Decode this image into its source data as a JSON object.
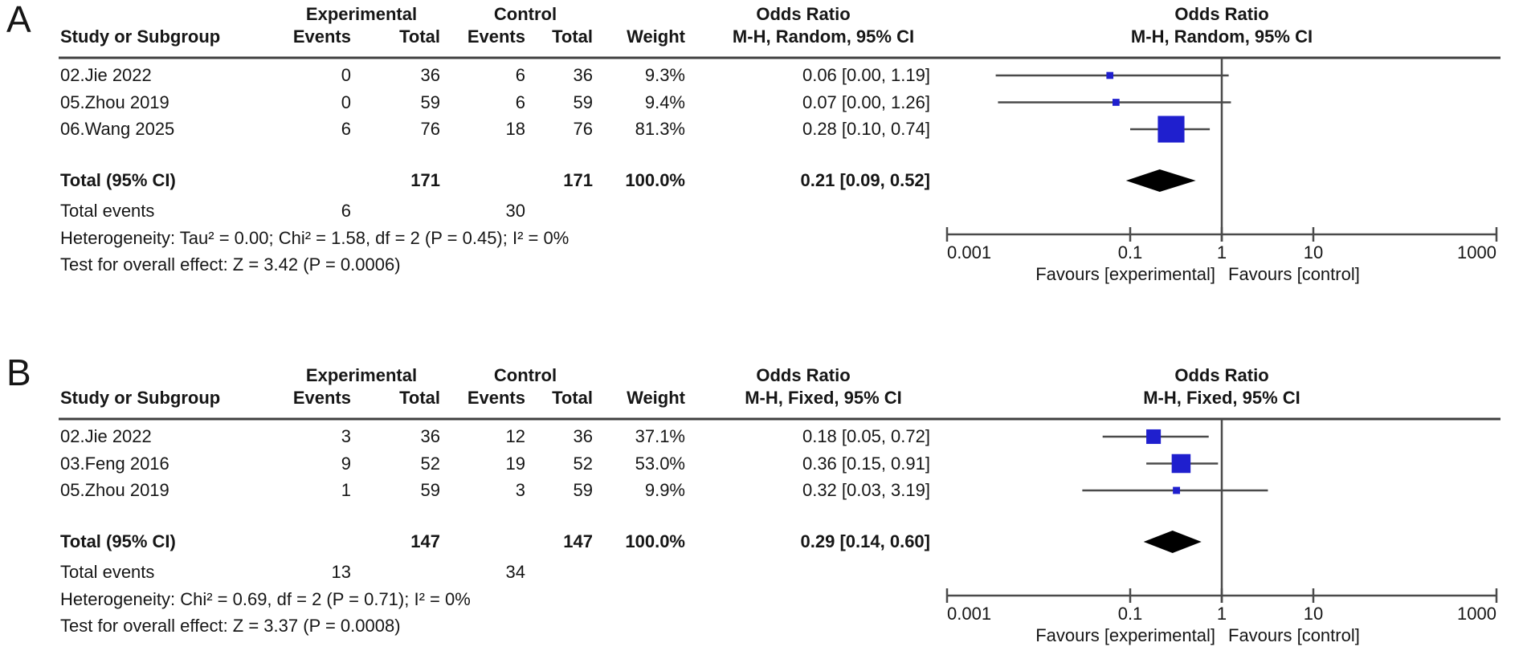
{
  "style": {
    "marker_color": "#1f1fce",
    "diamond_color": "#000000",
    "line_color": "#4a4a4a",
    "rule_color": "#3f3f3f",
    "text_color": "#161616",
    "background": "#ffffff"
  },
  "chart_data": [
    {
      "type": "forest",
      "panel_label": "A",
      "effect_label": "Odds Ratio",
      "method_label": "M-H, Random, 95% CI",
      "group_headers": {
        "experimental": "Experimental",
        "control": "Control"
      },
      "columns": {
        "study": "Study or Subgroup",
        "events": "Events",
        "total": "Total",
        "weight": "Weight"
      },
      "studies": [
        {
          "name": "02.Jie 2022",
          "exp_events": "0",
          "exp_total": "36",
          "ctl_events": "6",
          "ctl_total": "36",
          "weight": "9.3%",
          "or_text": "0.06 [0.00, 1.19]",
          "or": 0.06,
          "ci_lo_plot": 0.0034,
          "ci_hi_plot": 1.19
        },
        {
          "name": "05.Zhou 2019",
          "exp_events": "0",
          "exp_total": "59",
          "ctl_events": "6",
          "ctl_total": "59",
          "weight": "9.4%",
          "or_text": "0.07 [0.00, 1.26]",
          "or": 0.07,
          "ci_lo_plot": 0.0036,
          "ci_hi_plot": 1.26
        },
        {
          "name": "06.Wang 2025",
          "exp_events": "6",
          "exp_total": "76",
          "ctl_events": "18",
          "ctl_total": "76",
          "weight": "81.3%",
          "or_text": "0.28 [0.10, 0.74]",
          "or": 0.28,
          "ci_lo_plot": 0.1,
          "ci_hi_plot": 0.74
        }
      ],
      "total": {
        "label": "Total (95% CI)",
        "exp_total": "171",
        "ctl_total": "171",
        "weight": "100.0%",
        "or_text": "0.21 [0.09, 0.52]",
        "or": 0.21,
        "ci_lo": 0.09,
        "ci_hi": 0.52
      },
      "total_events": {
        "label": "Total events",
        "experimental": "6",
        "control": "30"
      },
      "heterogeneity": "Heterogeneity: Tau² = 0.00; Chi² = 1.58, df = 2 (P = 0.45); I² = 0%",
      "overall_effect": "Test for overall effect: Z = 3.42 (P = 0.0006)",
      "axis": {
        "scale": "log",
        "min": 0.001,
        "max": 1000,
        "ticks": [
          "0.001",
          "0.1",
          "1",
          "10",
          "1000"
        ],
        "tick_values": [
          0.001,
          0.1,
          1,
          10,
          1000
        ]
      },
      "favours_left": "Favours [experimental]",
      "favours_right": "Favours [control]"
    },
    {
      "type": "forest",
      "panel_label": "B",
      "effect_label": "Odds Ratio",
      "method_label": "M-H, Fixed, 95% CI",
      "group_headers": {
        "experimental": "Experimental",
        "control": "Control"
      },
      "columns": {
        "study": "Study or Subgroup",
        "events": "Events",
        "total": "Total",
        "weight": "Weight"
      },
      "studies": [
        {
          "name": "02.Jie 2022",
          "exp_events": "3",
          "exp_total": "36",
          "ctl_events": "12",
          "ctl_total": "36",
          "weight": "37.1%",
          "or_text": "0.18 [0.05, 0.72]",
          "or": 0.18,
          "ci_lo_plot": 0.05,
          "ci_hi_plot": 0.72
        },
        {
          "name": "03.Feng 2016",
          "exp_events": "9",
          "exp_total": "52",
          "ctl_events": "19",
          "ctl_total": "52",
          "weight": "53.0%",
          "or_text": "0.36 [0.15, 0.91]",
          "or": 0.36,
          "ci_lo_plot": 0.15,
          "ci_hi_plot": 0.91
        },
        {
          "name": "05.Zhou 2019",
          "exp_events": "1",
          "exp_total": "59",
          "ctl_events": "3",
          "ctl_total": "59",
          "weight": "9.9%",
          "or_text": "0.32 [0.03, 3.19]",
          "or": 0.32,
          "ci_lo_plot": 0.03,
          "ci_hi_plot": 3.19
        }
      ],
      "total": {
        "label": "Total (95% CI)",
        "exp_total": "147",
        "ctl_total": "147",
        "weight": "100.0%",
        "or_text": "0.29 [0.14, 0.60]",
        "or": 0.29,
        "ci_lo": 0.14,
        "ci_hi": 0.6
      },
      "total_events": {
        "label": "Total events",
        "experimental": "13",
        "control": "34"
      },
      "heterogeneity": "Heterogeneity: Chi² = 0.69, df = 2 (P = 0.71); I² = 0%",
      "overall_effect": "Test for overall effect: Z = 3.37 (P = 0.0008)",
      "axis": {
        "scale": "log",
        "min": 0.001,
        "max": 1000,
        "ticks": [
          "0.001",
          "0.1",
          "1",
          "10",
          "1000"
        ],
        "tick_values": [
          0.001,
          0.1,
          1,
          10,
          1000
        ]
      },
      "favours_left": "Favours [experimental]",
      "favours_right": "Favours [control]"
    }
  ]
}
